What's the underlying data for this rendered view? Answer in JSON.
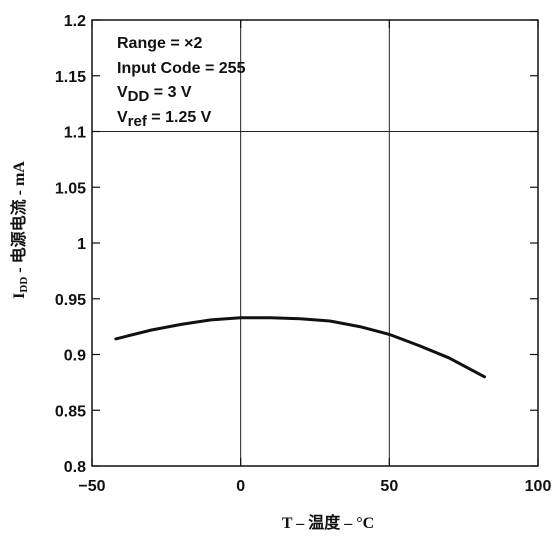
{
  "chart_data": {
    "type": "line",
    "title": "",
    "xlabel": "T – 温度 – °C",
    "ylabel": "I",
    "ylabel_sub": "DD",
    "ylabel_rest": " - 电源电流 - mA",
    "xlim": [
      -50,
      100
    ],
    "ylim": [
      0.8,
      1.2
    ],
    "x_ticks": [
      -50,
      0,
      50,
      100
    ],
    "x_tick_labels": [
      "−50",
      "0",
      "50",
      "100"
    ],
    "y_ticks": [
      0.8,
      0.85,
      0.9,
      0.95,
      1.0,
      1.05,
      1.1,
      1.15,
      1.2
    ],
    "y_tick_labels": [
      "0.8",
      "0.85",
      "0.9",
      "0.95",
      "1",
      "1.05",
      "1.1",
      "1.15",
      "1.2"
    ],
    "grid_x": [
      0,
      50
    ],
    "grid_y": [
      1.1
    ],
    "legend": "none",
    "annotations": [
      {
        "parts": [
          {
            "t": "Range = ×2"
          }
        ]
      },
      {
        "parts": [
          {
            "t": "Input Code = 255"
          }
        ]
      },
      {
        "parts": [
          {
            "t": "V"
          },
          {
            "t": "DD",
            "sub": true
          },
          {
            "t": " = 3 V"
          }
        ]
      },
      {
        "parts": [
          {
            "t": "V"
          },
          {
            "t": "ref",
            "sub": true
          },
          {
            "t": " = 1.25 V"
          }
        ]
      }
    ],
    "series": [
      {
        "color": "#111111",
        "x": [
          -42,
          -30,
          -20,
          -10,
          0,
          5,
          10,
          20,
          30,
          40,
          50,
          60,
          70,
          82
        ],
        "y": [
          0.914,
          0.922,
          0.927,
          0.931,
          0.933,
          0.933,
          0.933,
          0.932,
          0.93,
          0.925,
          0.918,
          0.908,
          0.897,
          0.88
        ]
      }
    ]
  }
}
